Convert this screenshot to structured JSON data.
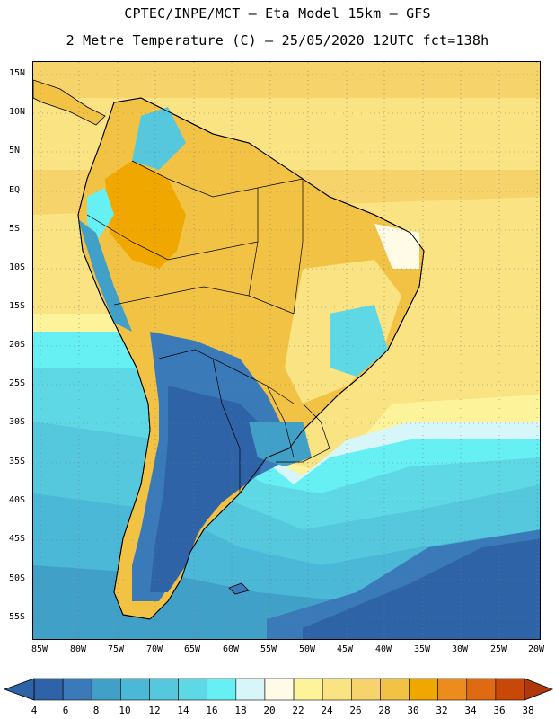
{
  "header": {
    "title_line1": "CPTEC/INPE/MCT –  Eta Model 15km – GFS",
    "title_line2": "2 Metre Temperature (C) – 25/05/2020 12UTC fct=138h"
  },
  "map": {
    "lat_labels": [
      "15N",
      "10N",
      "5N",
      "EQ",
      "5S",
      "10S",
      "15S",
      "20S",
      "25S",
      "30S",
      "35S",
      "40S",
      "45S",
      "50S",
      "55S"
    ],
    "lon_labels": [
      "85W",
      "80W",
      "75W",
      "70W",
      "65W",
      "60W",
      "55W",
      "50W",
      "45W",
      "40W",
      "35W",
      "30W",
      "25W",
      "20W"
    ]
  },
  "colorbar": {
    "labels": [
      "4",
      "6",
      "8",
      "10",
      "12",
      "14",
      "16",
      "18",
      "20",
      "22",
      "24",
      "26",
      "28",
      "30",
      "32",
      "34",
      "36",
      "38"
    ],
    "colors": [
      "#2f63a8",
      "#3a7ab8",
      "#41a0c8",
      "#4ab8d6",
      "#55c8de",
      "#5fd8e6",
      "#66f0f4",
      "#d6f6fa",
      "#fffbe6",
      "#fdf39a",
      "#fae383",
      "#f7d46b",
      "#f2c244",
      "#f0a800",
      "#ec8c1c",
      "#e06a12",
      "#c84808",
      "#b03808"
    ]
  }
}
